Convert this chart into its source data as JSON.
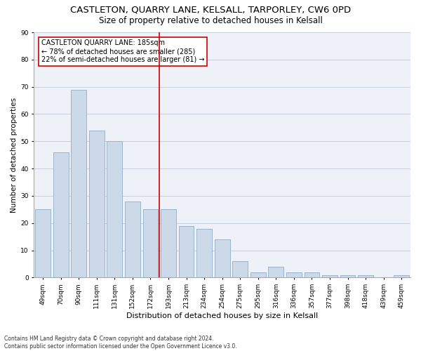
{
  "title": "CASTLETON, QUARRY LANE, KELSALL, TARPORLEY, CW6 0PD",
  "subtitle": "Size of property relative to detached houses in Kelsall",
  "xlabel": "Distribution of detached houses by size in Kelsall",
  "ylabel": "Number of detached properties",
  "categories": [
    "49sqm",
    "70sqm",
    "90sqm",
    "111sqm",
    "131sqm",
    "152sqm",
    "172sqm",
    "193sqm",
    "213sqm",
    "234sqm",
    "254sqm",
    "275sqm",
    "295sqm",
    "316sqm",
    "336sqm",
    "357sqm",
    "377sqm",
    "398sqm",
    "418sqm",
    "439sqm",
    "459sqm"
  ],
  "values": [
    25,
    46,
    69,
    54,
    50,
    28,
    25,
    25,
    19,
    18,
    14,
    6,
    2,
    4,
    2,
    2,
    1,
    1,
    1,
    0,
    1
  ],
  "bar_color": "#ccd9e8",
  "bar_edge_color": "#9ab5cc",
  "vline_color": "#cc0000",
  "annotation_text": "CASTLETON QUARRY LANE: 185sqm\n← 78% of detached houses are smaller (285)\n22% of semi-detached houses are larger (81) →",
  "annotation_box_color": "#ffffff",
  "annotation_box_edge": "#cc0000",
  "ylim": [
    0,
    90
  ],
  "yticks": [
    0,
    10,
    20,
    30,
    40,
    50,
    60,
    70,
    80,
    90
  ],
  "footer": "Contains HM Land Registry data © Crown copyright and database right 2024.\nContains public sector information licensed under the Open Government Licence v3.0.",
  "bg_color": "#eef2f8",
  "grid_color": "#c8d0dc",
  "title_fontsize": 9.5,
  "subtitle_fontsize": 8.5,
  "xlabel_fontsize": 8,
  "ylabel_fontsize": 7.5,
  "tick_fontsize": 6.5,
  "annotation_fontsize": 7,
  "footer_fontsize": 5.5
}
